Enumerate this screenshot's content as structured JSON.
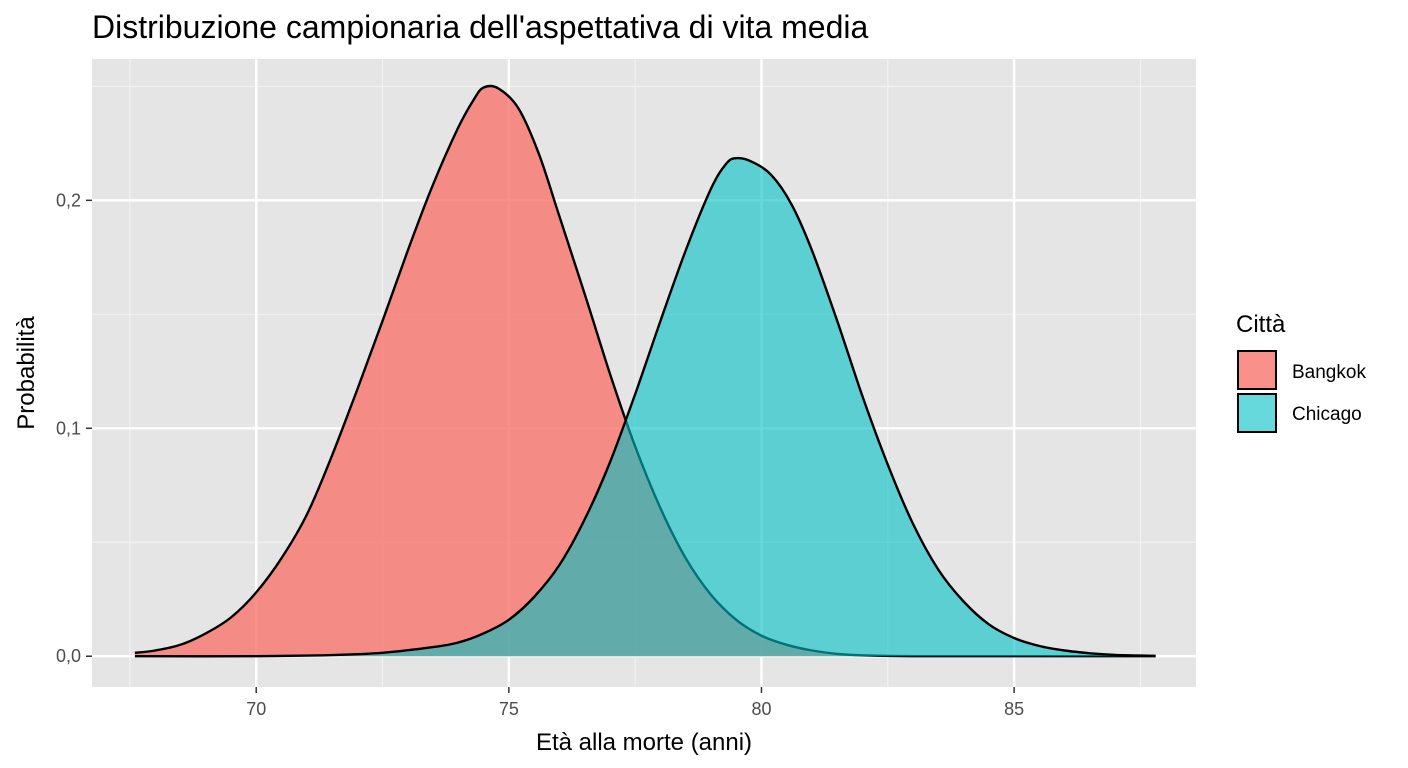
{
  "chart_data": {
    "type": "area",
    "title": "Distribuzione campionaria dell'aspettativa di vita media",
    "xlabel": "Età alla morte (anni)",
    "ylabel": "Probabilità",
    "xlim": [
      66.75,
      88.6
    ],
    "ylim": [
      -0.0135,
      0.262
    ],
    "x_ticks": [
      {
        "value": 70,
        "label": "70"
      },
      {
        "value": 75,
        "label": "75"
      },
      {
        "value": 80,
        "label": "80"
      },
      {
        "value": 85,
        "label": "85"
      }
    ],
    "y_ticks": [
      {
        "value": 0.0,
        "label": "0,0"
      },
      {
        "value": 0.1,
        "label": "0,1"
      },
      {
        "value": 0.2,
        "label": "0,2"
      }
    ],
    "grid": true,
    "legend": {
      "title": "Città",
      "position": "right"
    },
    "series": [
      {
        "name": "Bangkok",
        "color": "#F8766D",
        "points": [
          [
            67.6,
            0.0015
          ],
          [
            68.0,
            0.0025
          ],
          [
            68.5,
            0.005
          ],
          [
            69.0,
            0.01
          ],
          [
            69.5,
            0.017
          ],
          [
            70.0,
            0.028
          ],
          [
            70.5,
            0.043
          ],
          [
            71.0,
            0.062
          ],
          [
            71.5,
            0.088
          ],
          [
            72.0,
            0.117
          ],
          [
            72.5,
            0.147
          ],
          [
            73.0,
            0.178
          ],
          [
            73.5,
            0.207
          ],
          [
            74.0,
            0.232
          ],
          [
            74.3,
            0.244
          ],
          [
            74.5,
            0.2495
          ],
          [
            74.8,
            0.249
          ],
          [
            75.2,
            0.24
          ],
          [
            75.6,
            0.22
          ],
          [
            76.0,
            0.193
          ],
          [
            76.5,
            0.159
          ],
          [
            77.0,
            0.124
          ],
          [
            77.5,
            0.092
          ],
          [
            78.0,
            0.065
          ],
          [
            78.5,
            0.043
          ],
          [
            79.0,
            0.027
          ],
          [
            79.5,
            0.016
          ],
          [
            80.0,
            0.009
          ],
          [
            80.5,
            0.005
          ],
          [
            81.0,
            0.0025
          ],
          [
            81.5,
            0.001
          ],
          [
            82.0,
            0.0004
          ],
          [
            83.0,
            0.0
          ],
          [
            85.0,
            0.0
          ],
          [
            87.8,
            0.0
          ]
        ]
      },
      {
        "name": "Chicago",
        "color": "#00BFC4",
        "points": [
          [
            67.6,
            0.0
          ],
          [
            70.0,
            0.0
          ],
          [
            71.5,
            0.0005
          ],
          [
            72.5,
            0.0015
          ],
          [
            73.5,
            0.004
          ],
          [
            74.0,
            0.006
          ],
          [
            74.5,
            0.01
          ],
          [
            75.0,
            0.016
          ],
          [
            75.5,
            0.026
          ],
          [
            76.0,
            0.04
          ],
          [
            76.5,
            0.06
          ],
          [
            77.0,
            0.085
          ],
          [
            77.5,
            0.115
          ],
          [
            78.0,
            0.147
          ],
          [
            78.5,
            0.178
          ],
          [
            79.0,
            0.205
          ],
          [
            79.3,
            0.216
          ],
          [
            79.5,
            0.2185
          ],
          [
            79.8,
            0.217
          ],
          [
            80.2,
            0.211
          ],
          [
            80.6,
            0.198
          ],
          [
            81.0,
            0.178
          ],
          [
            81.5,
            0.147
          ],
          [
            82.0,
            0.114
          ],
          [
            82.5,
            0.084
          ],
          [
            83.0,
            0.058
          ],
          [
            83.5,
            0.038
          ],
          [
            84.0,
            0.024
          ],
          [
            84.5,
            0.014
          ],
          [
            85.0,
            0.008
          ],
          [
            85.5,
            0.0045
          ],
          [
            86.0,
            0.0025
          ],
          [
            86.5,
            0.0013
          ],
          [
            87.0,
            0.0006
          ],
          [
            87.8,
            0.0002
          ]
        ]
      }
    ]
  }
}
